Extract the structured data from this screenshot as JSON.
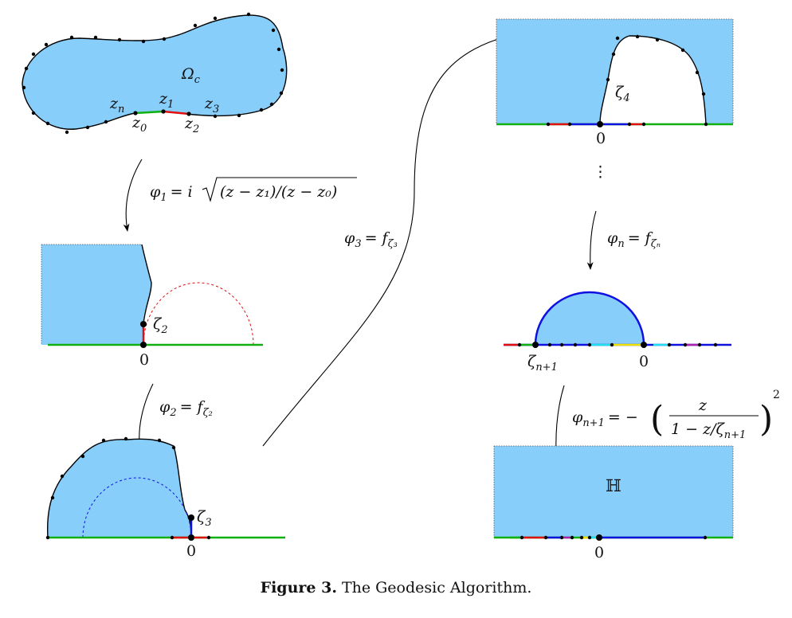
{
  "figure": {
    "caption_label": "Figure 3.",
    "caption_text": "The Geodesic Algorithm."
  },
  "colors": {
    "fill": "#87cefa",
    "boundary": "#000000",
    "green": "#10b010",
    "red": "#e01010",
    "blue": "#1010e0",
    "yellow": "#f0e000",
    "cyan": "#20e0f0",
    "magenta": "#b020b0"
  },
  "panel1": {
    "domain_label": "Ω",
    "domain_sub": "c",
    "z_n": "z",
    "z_n_sub": "n",
    "z_0": "z",
    "z_0_sub": "0",
    "z_1": "z",
    "z_1_sub": "1",
    "z_2": "z",
    "z_2_sub": "2",
    "z_3": "z",
    "z_3_sub": "3"
  },
  "map1": {
    "phi": "φ",
    "phi_sub": "1",
    "rhs_prefix": "= i",
    "radicand": "(z − z₁)/(z − z₀)"
  },
  "panel2": {
    "zeta": "ζ",
    "zeta_sub": "2",
    "origin": "0"
  },
  "map2": {
    "phi": "φ",
    "phi_sub": "2",
    "rhs": "= f",
    "rhs_sub": "ζ₂"
  },
  "panel3": {
    "zeta": "ζ",
    "zeta_sub": "3",
    "origin": "0"
  },
  "map3": {
    "phi": "φ",
    "phi_sub": "3",
    "rhs": "= f",
    "rhs_sub": "ζ₃"
  },
  "panel4": {
    "zeta": "ζ",
    "zeta_sub": "4",
    "origin": "0",
    "vdots": "⋮"
  },
  "mapn": {
    "phi": "φ",
    "phi_sub": "n",
    "rhs": "= f",
    "rhs_sub": "ζₙ"
  },
  "panel5": {
    "zeta": "ζ",
    "zeta_sub": "n+1",
    "origin": "0"
  },
  "mapn1": {
    "phi": "φ",
    "phi_sub": "n+1",
    "rhs_prefix": "= −",
    "numerator": "z",
    "denominator": "1 − z/ζ",
    "denominator_sub": "n+1",
    "exponent": "2"
  },
  "panel6": {
    "domain_label": "ℍ",
    "origin": "0"
  }
}
